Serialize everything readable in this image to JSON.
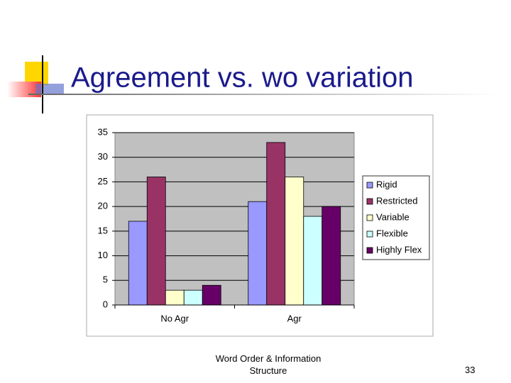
{
  "slide": {
    "title": "Agreement vs. wo variation",
    "footer": "Word Order & Information Structure",
    "page_number": "33"
  },
  "chart_data": {
    "type": "bar",
    "categories": [
      "No Agr",
      "Agr"
    ],
    "series": [
      {
        "name": "Rigid",
        "color": "#9999ff",
        "values": [
          17,
          21
        ]
      },
      {
        "name": "Restricted",
        "color": "#993366",
        "values": [
          26,
          33
        ]
      },
      {
        "name": "Variable",
        "color": "#ffffcc",
        "values": [
          3,
          26
        ]
      },
      {
        "name": "Flexible",
        "color": "#ccffff",
        "values": [
          3,
          18
        ]
      },
      {
        "name": "Highly Flex",
        "color": "#660066",
        "values": [
          4,
          20
        ]
      }
    ],
    "ylim": [
      0,
      35
    ],
    "yticks": [
      0,
      5,
      10,
      15,
      20,
      25,
      30,
      35
    ],
    "grid": true,
    "legend": "right"
  }
}
